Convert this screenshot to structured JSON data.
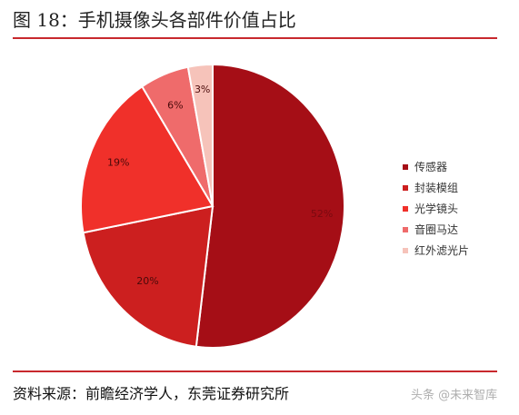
{
  "header": {
    "title": "图 18：手机摄像头各部件价值占比"
  },
  "chart_data": {
    "type": "pie",
    "title": "",
    "slices": [
      {
        "name": "传感器",
        "value": 52,
        "label": "52%",
        "color": "#a50e16"
      },
      {
        "name": "封装模组",
        "value": 20,
        "label": "20%",
        "color": "#cc1f1f"
      },
      {
        "name": "光学镜头",
        "value": 19,
        "label": "19%",
        "color": "#f0302a"
      },
      {
        "name": "音圈马达",
        "value": 6,
        "label": "6%",
        "color": "#ef6b6b"
      },
      {
        "name": "红外滤光片",
        "value": 3,
        "label": "3%",
        "color": "#f6c3ba"
      }
    ],
    "legend_position": "right"
  },
  "footer": {
    "source": "资料来源：前瞻经济学人，东莞证券研究所",
    "watermark": "头条 @未来智库"
  },
  "colors": {
    "rule": "#c8282d"
  }
}
